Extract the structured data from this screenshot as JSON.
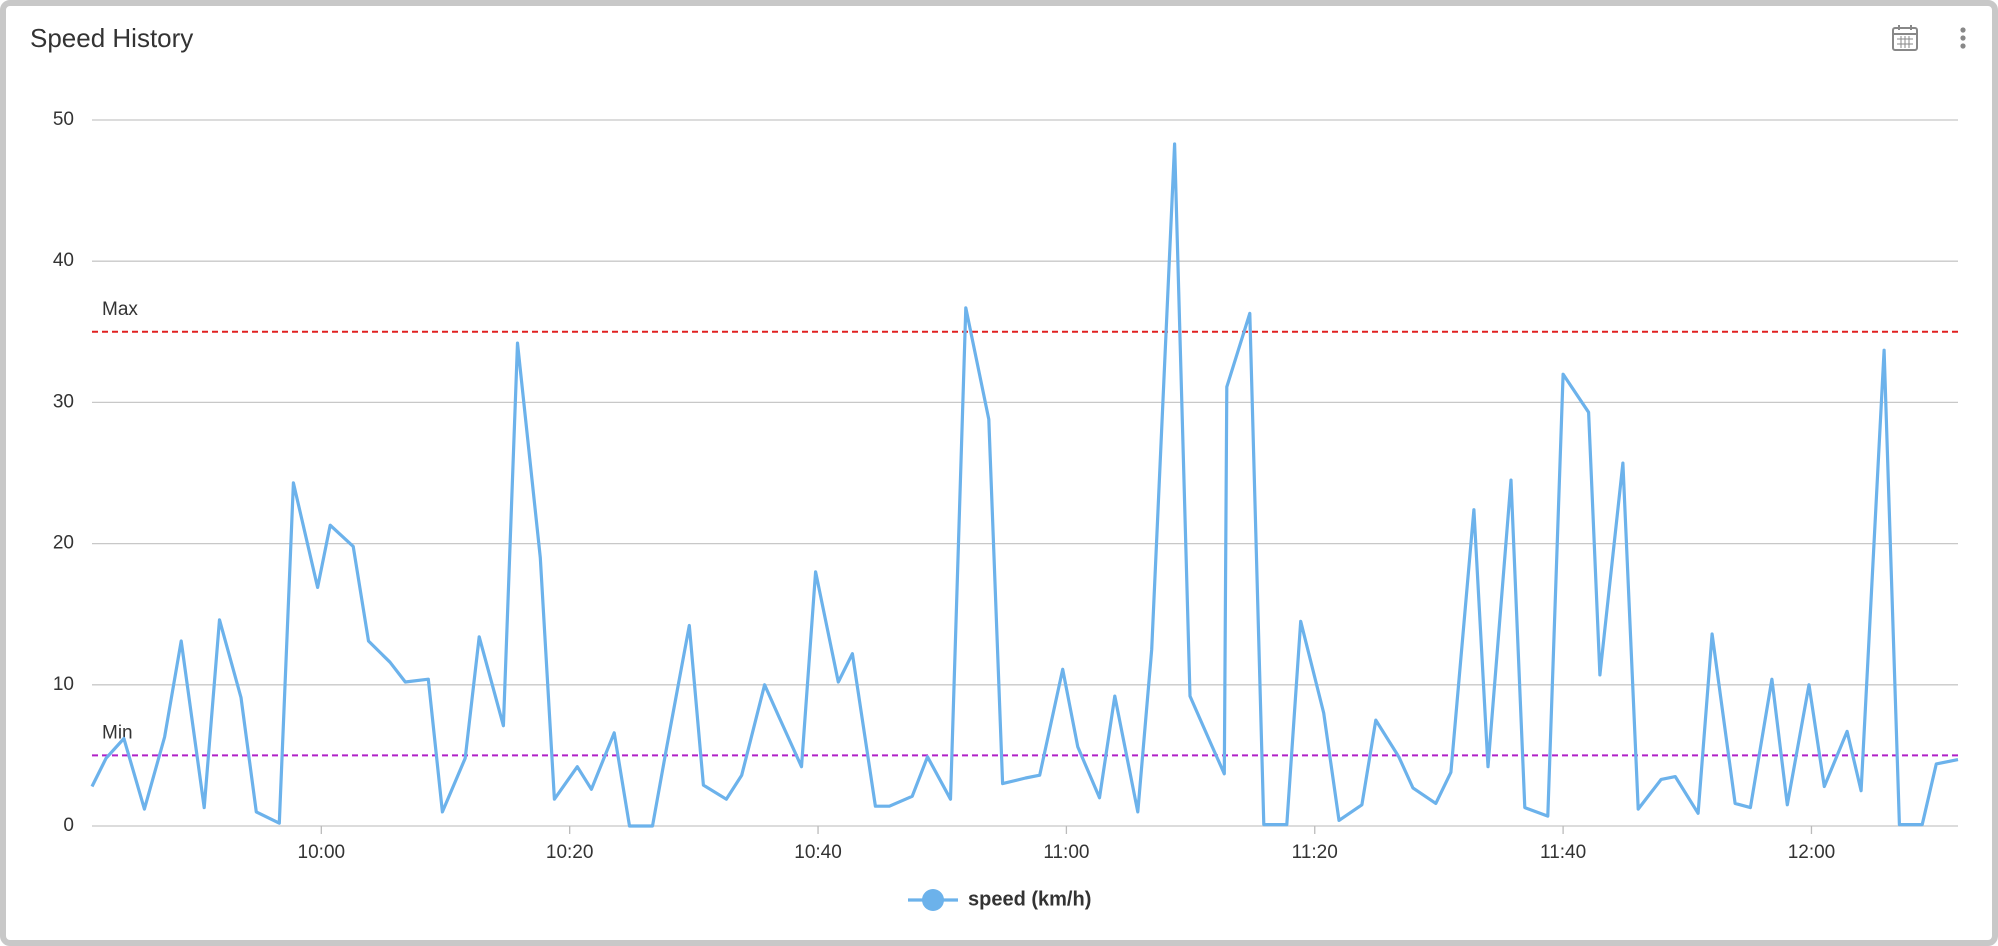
{
  "chart_data": {
    "type": "line",
    "title": "Speed History",
    "x": [
      "09:41:32",
      "09:42:40",
      "09:44:06",
      "09:45:45",
      "09:47:23",
      "09:48:43",
      "09:50:34",
      "09:51:48",
      "09:53:32",
      "09:54:46",
      "09:56:37",
      "09:57:45",
      "09:59:42",
      "10:00:43",
      "10:02:34",
      "10:03:48",
      "10:05:32",
      "10:06:46",
      "10:08:37",
      "10:09:45",
      "10:11:35",
      "10:12:43",
      "10:14:40",
      "10:15:48",
      "10:17:38",
      "10:18:46",
      "10:20:37",
      "10:21:45",
      "10:23:35",
      "10:24:49",
      "10:26:40",
      "10:27:48",
      "10:29:38",
      "10:30:46",
      "10:32:37",
      "10:33:51",
      "10:35:42",
      "10:36:49",
      "10:38:40",
      "10:39:48",
      "10:41:38",
      "10:42:46",
      "10:44:37",
      "10:45:45",
      "10:47:35",
      "10:48:49",
      "10:50:40",
      "10:51:54",
      "10:53:45",
      "10:54:52",
      "10:56:43",
      "10:57:51",
      "10:59:42",
      "11:00:55",
      "11:02:40",
      "11:03:54",
      "11:05:45",
      "11:06:52",
      "11:08:43",
      "11:09:57",
      "11:11:42",
      "11:12:43",
      "11:12:55",
      "11:14:46",
      "11:15:54",
      "11:17:45",
      "11:18:52",
      "11:20:43",
      "11:21:57",
      "11:23:48",
      "11:24:55",
      "11:26:46",
      "11:27:54",
      "11:29:45",
      "11:30:58",
      "11:32:49",
      "11:33:57",
      "11:35:48",
      "11:36:55",
      "11:38:46",
      "11:40:00",
      "11:42:03",
      "11:42:58",
      "11:44:49",
      "11:46:03",
      "11:47:54",
      "11:49:02",
      "11:50:52",
      "11:52:00",
      "11:53:51",
      "11:55:05",
      "11:56:49",
      "11:58:03",
      "11:59:48",
      "12:01:02",
      "12:02:52",
      "12:04:00",
      "12:05:51",
      "12:07:05",
      "12:08:55",
      "12:10:03",
      "12:11:48"
    ],
    "series": [
      {
        "name": "speed (km/h)",
        "color": "#6cb2eb",
        "values": [
          2.8,
          4.8,
          6.2,
          1.2,
          6.3,
          13.1,
          1.3,
          14.6,
          9.1,
          1.0,
          0.2,
          24.3,
          16.9,
          21.3,
          19.8,
          13.1,
          11.6,
          10.2,
          10.4,
          1.0,
          4.8,
          13.4,
          7.1,
          34.2,
          19.0,
          1.9,
          4.2,
          2.6,
          6.6,
          0,
          0,
          5.5,
          14.2,
          2.9,
          1.9,
          3.6,
          10.0,
          7.8,
          4.2,
          18.0,
          10.2,
          12.2,
          1.4,
          1.4,
          2.1,
          4.9,
          1.9,
          36.7,
          28.8,
          3.0,
          3.4,
          3.6,
          11.1,
          5.6,
          2.0,
          9.2,
          1.0,
          12.5,
          48.3,
          9.2,
          5.7,
          3.7,
          31.1,
          36.3,
          0.1,
          0.1,
          14.5,
          8.0,
          0.4,
          1.5,
          7.5,
          4.9,
          2.7,
          1.6,
          3.8,
          22.4,
          4.2,
          24.5,
          1.3,
          0.7,
          32.0,
          29.3,
          10.7,
          25.7,
          1.2,
          3.3,
          3.5,
          0.9,
          13.6,
          1.6,
          1.3,
          10.4,
          1.5,
          10.0,
          2.8,
          6.7,
          2.5,
          33.7,
          0.1,
          0.1,
          4.4,
          4.7
        ]
      }
    ],
    "xlim": [
      "09:41:32",
      "12:11:48"
    ],
    "xticks": [
      "10:00",
      "10:20",
      "10:40",
      "11:00",
      "11:20",
      "11:40",
      "12:00"
    ],
    "ylim": [
      0,
      50
    ],
    "yticks": [
      0,
      10,
      20,
      30,
      40,
      50
    ],
    "grid": true,
    "thresholds": [
      {
        "label": "Max",
        "value": 35,
        "color": "#e02020"
      },
      {
        "label": "Min",
        "value": 5,
        "color": "#b020c8"
      }
    ],
    "legend": "bottom"
  }
}
